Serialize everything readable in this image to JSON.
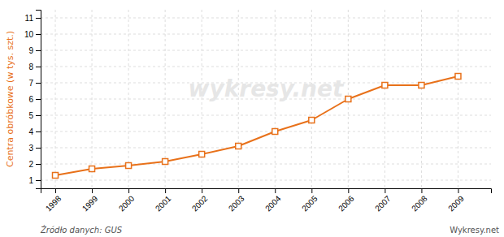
{
  "chart_data": {
    "type": "line",
    "y_label": "Centra obróbkowe (w tys. szt.)",
    "x": [
      1998,
      1999,
      2000,
      2001,
      2002,
      2003,
      2004,
      2005,
      2006,
      2007,
      2008,
      2009
    ],
    "values": [
      1.3,
      1.7,
      1.9,
      2.15,
      2.6,
      3.1,
      4.0,
      4.7,
      6.0,
      6.85,
      6.85,
      7.4
    ],
    "color": "#e8711a",
    "marker": "square",
    "line_style": "solid",
    "xlim": [
      1997.6,
      2009.9
    ],
    "xticks": [
      1998,
      1999,
      2000,
      2001,
      2002,
      2003,
      2004,
      2005,
      2006,
      2007,
      2008,
      2009
    ],
    "ylim": [
      0.5,
      11.5
    ],
    "yticks": [
      1,
      2,
      3,
      4,
      5,
      6,
      7,
      8,
      9,
      10,
      11
    ],
    "grid": true,
    "annotations": [
      "wykresy.net",
      "Źródło danych:  GUS",
      "Wykresy.net"
    ]
  }
}
